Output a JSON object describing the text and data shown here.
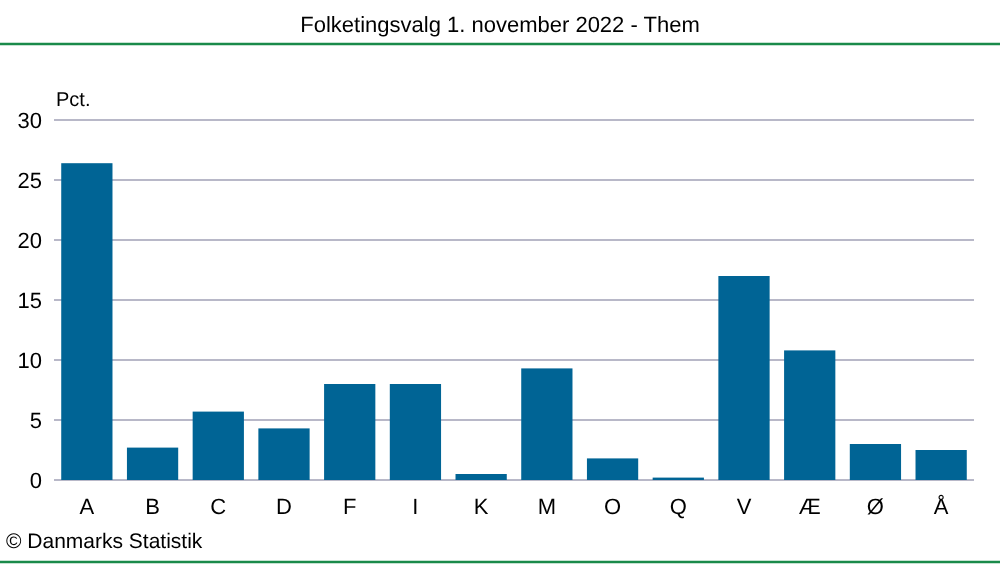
{
  "chart_data": {
    "type": "bar",
    "title": "Folketingsvalg 1. november 2022 - Them",
    "ylabel": "Pct.",
    "categories": [
      "A",
      "B",
      "C",
      "D",
      "F",
      "I",
      "K",
      "M",
      "O",
      "Q",
      "V",
      "Æ",
      "Ø",
      "Å"
    ],
    "values": [
      26.4,
      2.7,
      5.7,
      4.3,
      8.0,
      8.0,
      0.5,
      9.3,
      1.8,
      0.2,
      17.0,
      10.8,
      3.0,
      2.5
    ],
    "color": "#006495",
    "ylim": [
      0,
      30
    ],
    "yticks": [
      0,
      5,
      10,
      15,
      20,
      25,
      30
    ],
    "grid": "y",
    "annotations": [
      "© Danmarks Statistik"
    ]
  }
}
